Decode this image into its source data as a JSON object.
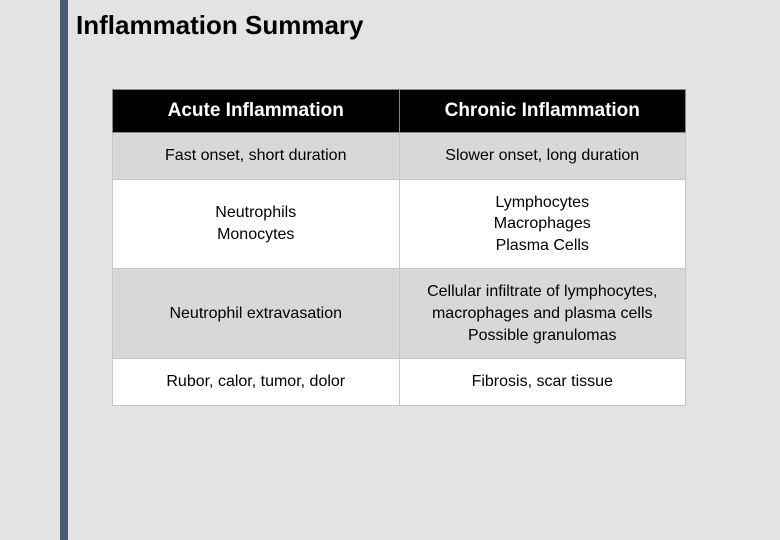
{
  "title": "Inflammation Summary",
  "accent_color": "#4a5a70",
  "background_color": "#e3e3e3",
  "table": {
    "header_bg": "#000000",
    "header_fg": "#ffffff",
    "shaded_row_bg": "#d8d8d8",
    "plain_row_bg": "#ffffff",
    "border_color": "#c8c8c8",
    "title_fontsize": 26,
    "header_fontsize": 19,
    "cell_fontsize": 16,
    "columns": [
      {
        "label": "Acute Inflammation"
      },
      {
        "label": "Chronic Inflammation"
      }
    ],
    "rows": [
      {
        "shaded": true,
        "cells": [
          "Fast onset, short duration",
          "Slower onset, long duration"
        ]
      },
      {
        "shaded": false,
        "cells": [
          "Neutrophils\nMonocytes",
          "Lymphocytes\nMacrophages\nPlasma Cells"
        ]
      },
      {
        "shaded": true,
        "cells": [
          "Neutrophil extravasation",
          "Cellular infiltrate of lymphocytes, macrophages and plasma cells\nPossible granulomas"
        ]
      },
      {
        "shaded": false,
        "cells": [
          "Rubor, calor, tumor, dolor",
          "Fibrosis, scar tissue"
        ]
      }
    ]
  }
}
